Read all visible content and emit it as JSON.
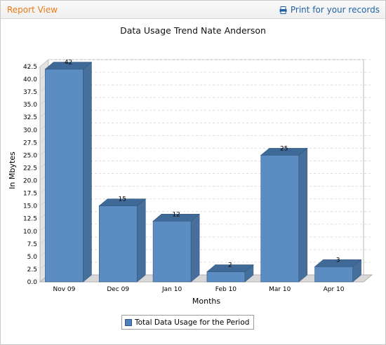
{
  "header": {
    "title": "Report View",
    "print_label": "Print for your records"
  },
  "chart_data": {
    "type": "bar",
    "title": "Data Usage Trend Nate Anderson",
    "xlabel": "Months",
    "ylabel": "In Mbytes",
    "categories": [
      "Nov 09",
      "Dec 09",
      "Jan 10",
      "Feb 10",
      "Mar 10",
      "Apr 10"
    ],
    "series": [
      {
        "name": "Total Data Usage for the Period",
        "values": [
          42,
          15,
          12,
          2,
          25,
          3
        ]
      }
    ],
    "data_labels": [
      "42",
      "15",
      "12",
      "2",
      "25",
      "3"
    ],
    "ylim": [
      0,
      42.5
    ],
    "yticks": [
      "0.0",
      "2.5",
      "5.0",
      "7.5",
      "10.0",
      "12.5",
      "15.0",
      "17.5",
      "20.0",
      "22.5",
      "25.0",
      "27.5",
      "30.0",
      "32.5",
      "35.0",
      "37.5",
      "40.0",
      "42.5"
    ],
    "grid": true,
    "legend_position": "bottom-center",
    "style": "3d",
    "colors": {
      "bar_front": "#5b8cc2",
      "bar_top": "#3f6a98",
      "bar_side": "#476f9c"
    }
  }
}
